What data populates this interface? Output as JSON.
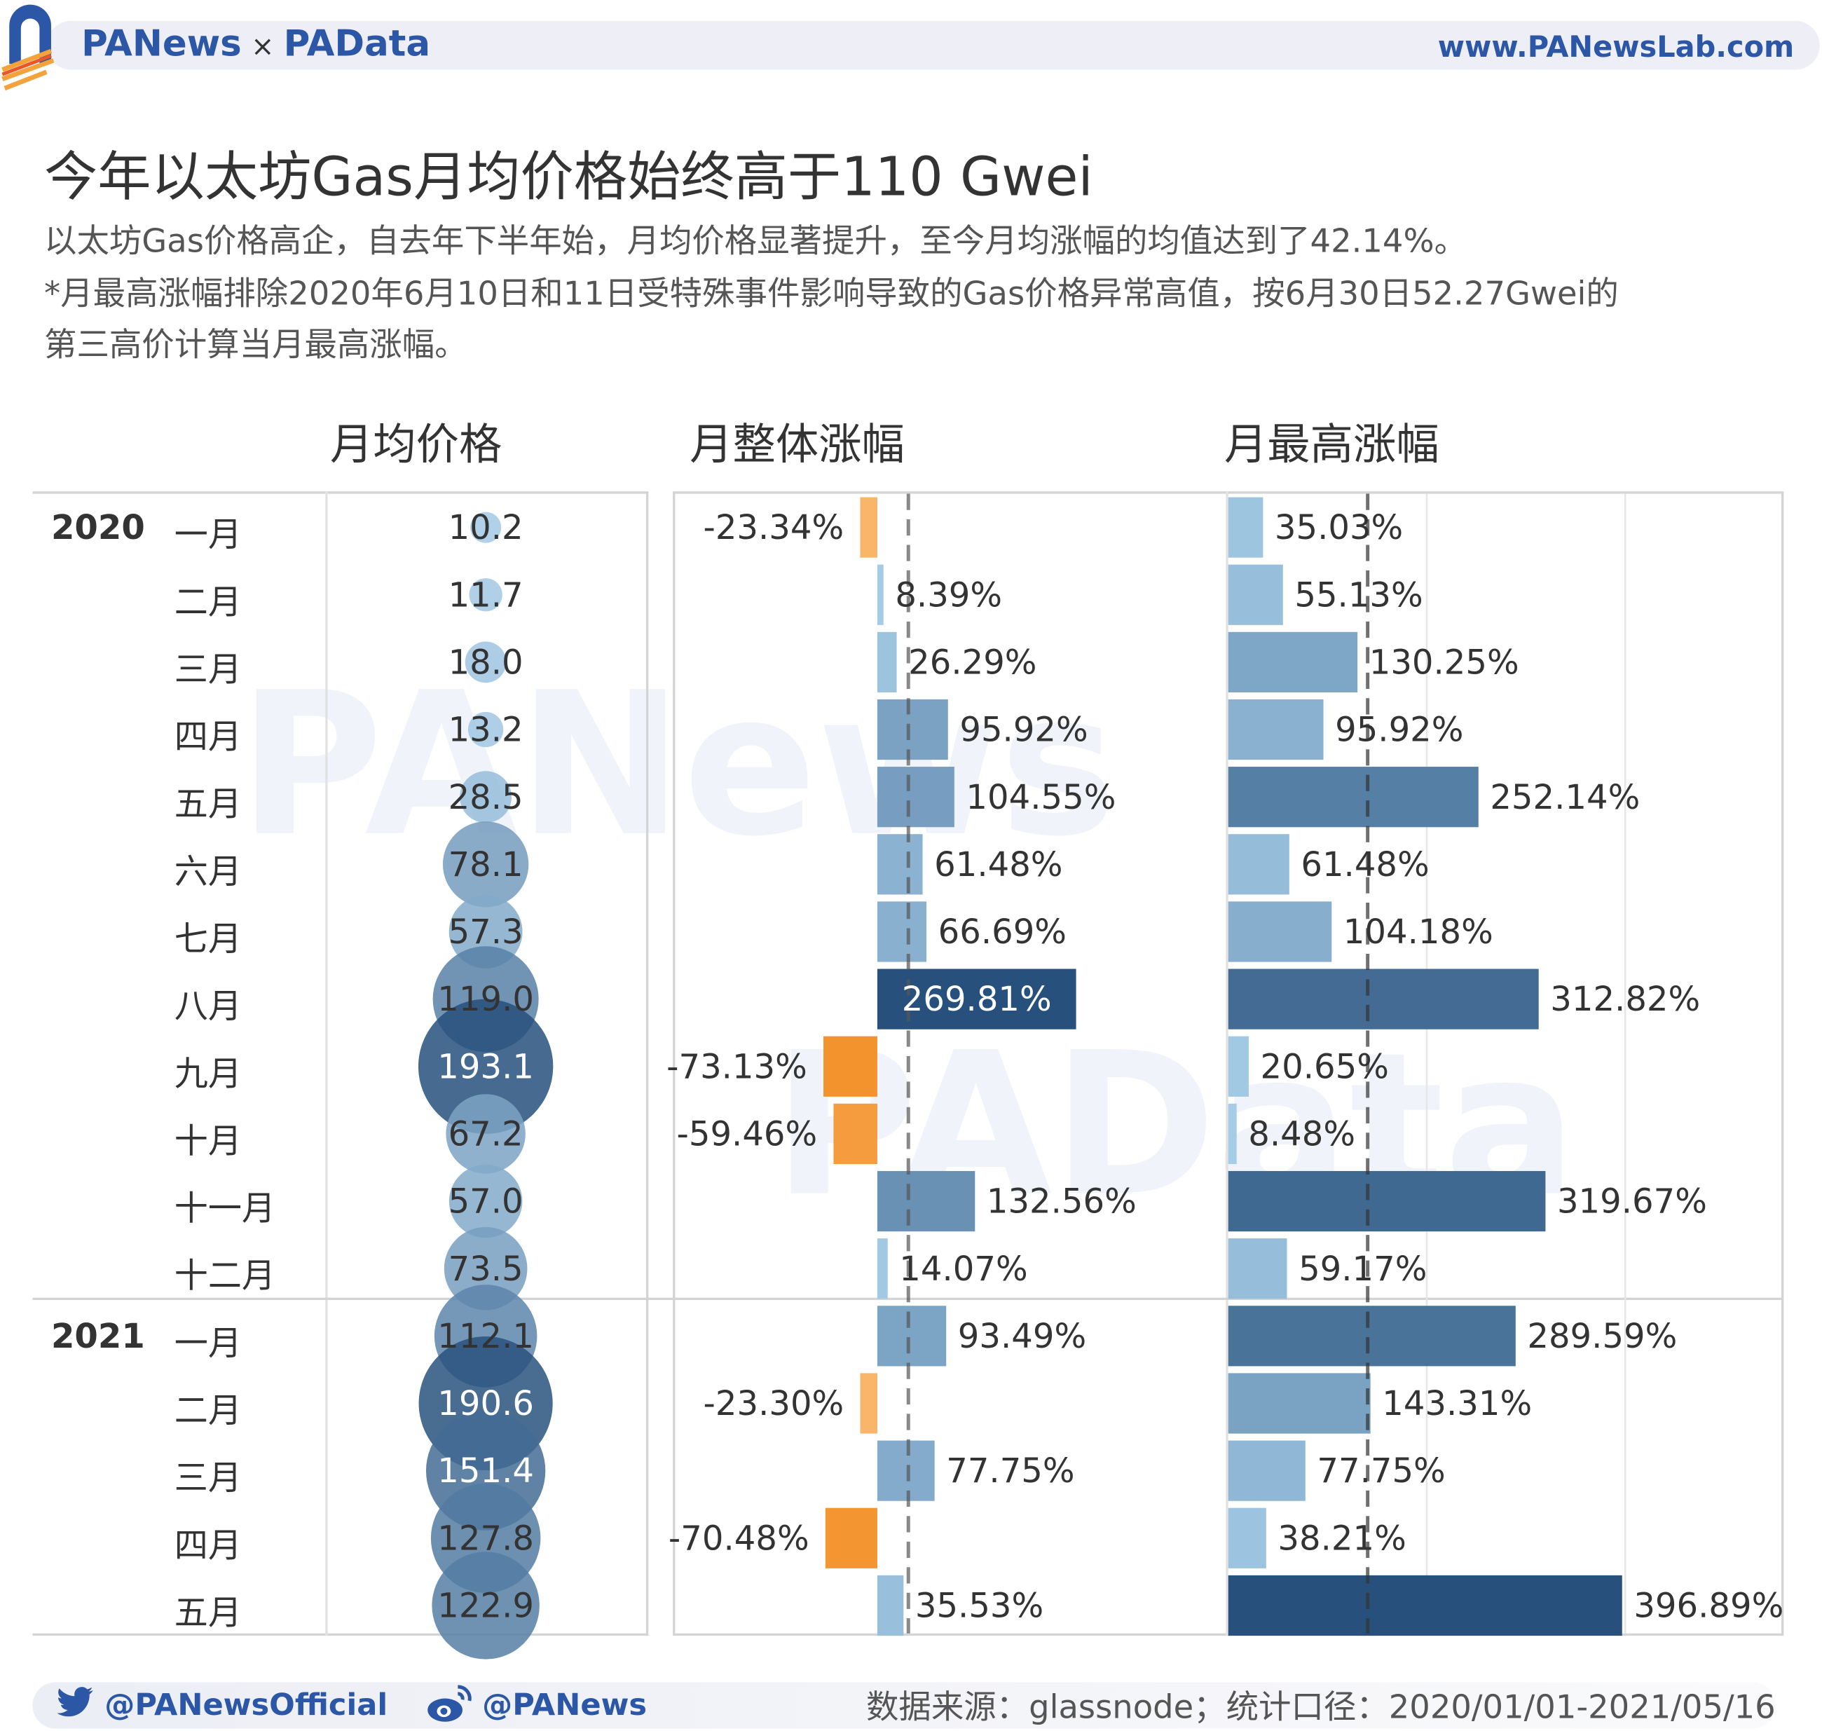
{
  "header": {
    "brand_left": "PANews",
    "brand_x": "×",
    "brand_right": "PAData",
    "website": "www.PANewsLab.com"
  },
  "title": "今年以太坊Gas月均价格始终高于110 Gwei",
  "subtitle": [
    "以太坊Gas价格高企，自去年下半年始，月均价格显著提升，至今月均涨幅的均值达到了42.14%。",
    "*月最高涨幅排除2020年6月10日和11日受特殊事件影响导致的Gas价格异常高值，按6月30日52.27Gwei的",
    "第三高价计算当月最高涨幅。"
  ],
  "watermarks": [
    "PANews",
    "PAData"
  ],
  "footer": {
    "twitter": "@PANewsOfficial",
    "weibo": "@PANews",
    "source": "数据来源：glassnode；统计口径：2020/01/01-2021/05/16"
  },
  "chart_data": {
    "type": "table",
    "columns": [
      "月均价格",
      "月整体涨幅",
      "月最高涨幅"
    ],
    "years": [
      {
        "label": "2020",
        "rows": 12
      },
      {
        "label": "2021",
        "rows": 5
      }
    ],
    "months": [
      "一月",
      "二月",
      "三月",
      "四月",
      "五月",
      "六月",
      "七月",
      "八月",
      "九月",
      "十月",
      "十一月",
      "十二月",
      "一月",
      "二月",
      "三月",
      "四月",
      "五月"
    ],
    "avg_price": [
      10.2,
      11.7,
      18.0,
      13.2,
      28.5,
      78.1,
      57.3,
      119.0,
      193.1,
      67.2,
      57.0,
      73.5,
      112.1,
      190.6,
      151.4,
      127.8,
      122.9
    ],
    "avg_price_labels": [
      "10.2",
      "11.7",
      "18.0",
      "13.2",
      "28.5",
      "78.1",
      "57.3",
      "119.0",
      "193.1",
      "67.2",
      "57.0",
      "73.5",
      "112.1",
      "190.6",
      "151.4",
      "127.8",
      "122.9"
    ],
    "overall_change": [
      -23.34,
      8.39,
      26.29,
      95.92,
      104.55,
      61.48,
      66.69,
      269.81,
      -73.13,
      -59.46,
      132.56,
      14.07,
      93.49,
      -23.3,
      77.75,
      -70.48,
      35.53
    ],
    "overall_change_labels": [
      "-23.34%",
      "8.39%",
      "26.29%",
      "95.92%",
      "104.55%",
      "61.48%",
      "66.69%",
      "269.81%",
      "-73.13%",
      "-59.46%",
      "132.56%",
      "14.07%",
      "93.49%",
      "-23.30%",
      "77.75%",
      "-70.48%",
      "35.53%"
    ],
    "overall_change_mean": 42.14,
    "max_change": [
      35.03,
      55.13,
      130.25,
      95.92,
      252.14,
      61.48,
      104.18,
      312.82,
      20.65,
      8.48,
      319.67,
      59.17,
      289.59,
      143.31,
      77.75,
      38.21,
      396.89
    ],
    "max_change_labels": [
      "35.03%",
      "55.13%",
      "130.25%",
      "95.92%",
      "252.14%",
      "61.48%",
      "104.18%",
      "312.82%",
      "20.65%",
      "8.48%",
      "319.67%",
      "59.17%",
      "289.59%",
      "143.31%",
      "77.75%",
      "38.21%",
      "396.89%"
    ],
    "max_change_reference": 140.5,
    "max_change_gridlines": [
      200,
      400
    ],
    "colors": {
      "positive_light": "#a9d0ea",
      "positive_dark": "#27507d",
      "negative_light": "#fcc585",
      "negative_dark": "#f3932e",
      "brand": "#2c57a6"
    }
  }
}
